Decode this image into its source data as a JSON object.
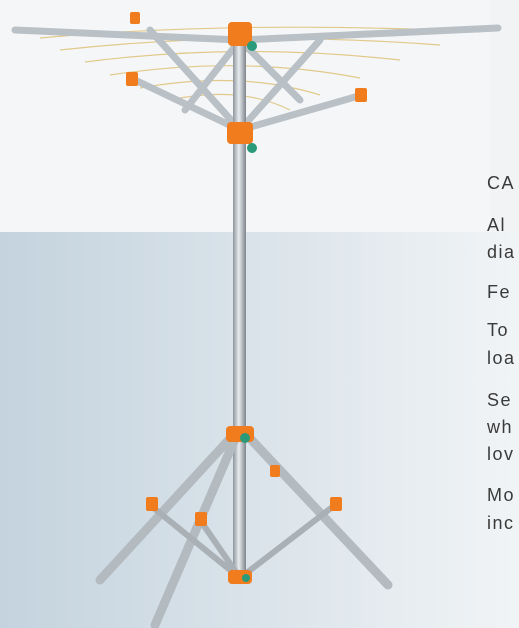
{
  "text_lines": [
    "CA",
    "Al",
    "dia",
    "Fe",
    "To",
    "loa",
    "Se",
    "wh",
    "lov",
    "Mo",
    "inc"
  ]
}
